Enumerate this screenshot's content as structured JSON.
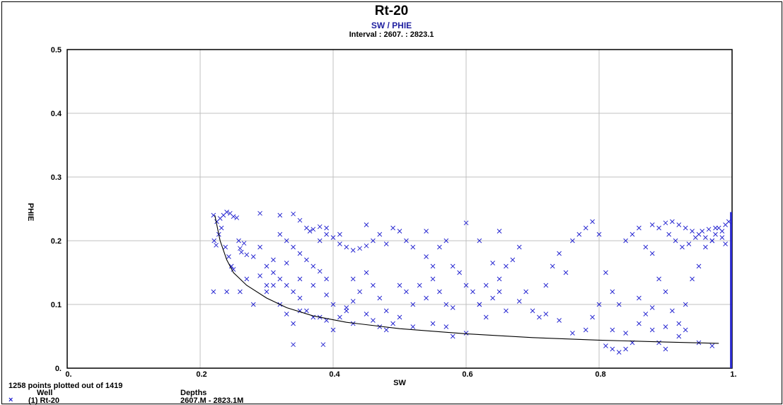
{
  "chart_data": {
    "type": "scatter",
    "title": "Rt-20",
    "subtitle": "SW / PHIE",
    "interval_label": "Interval : 2607. : 2823.1",
    "xlabel": "SW",
    "ylabel": "PHIE",
    "xlim": [
      0,
      1
    ],
    "ylim": [
      0,
      0.5
    ],
    "x_ticks": [
      "0.",
      "0.2",
      "0.4",
      "0.6",
      "0.8",
      "1."
    ],
    "y_ticks": [
      "0.",
      "0.1",
      "0.2",
      "0.3",
      "0.4",
      "0.5"
    ],
    "grid": true,
    "colors": {
      "points": "#2020d0",
      "curve": "#000000",
      "grid": "#c0c0c0",
      "subtitle": "#1f1fa0"
    },
    "series": [
      {
        "name": "(1) Rt-20",
        "marker": "x",
        "points": [
          [
            0.22,
            0.24
          ],
          [
            0.225,
            0.23
          ],
          [
            0.23,
            0.235
          ],
          [
            0.235,
            0.24
          ],
          [
            0.24,
            0.245
          ],
          [
            0.245,
            0.243
          ],
          [
            0.25,
            0.238
          ],
          [
            0.255,
            0.236
          ],
          [
            0.232,
            0.22
          ],
          [
            0.228,
            0.21
          ],
          [
            0.221,
            0.2
          ],
          [
            0.224,
            0.193
          ],
          [
            0.238,
            0.19
          ],
          [
            0.243,
            0.175
          ],
          [
            0.247,
            0.16
          ],
          [
            0.25,
            0.155
          ],
          [
            0.26,
            0.188
          ],
          [
            0.262,
            0.182
          ],
          [
            0.27,
            0.178
          ],
          [
            0.266,
            0.196
          ],
          [
            0.258,
            0.2
          ],
          [
            0.29,
            0.243
          ],
          [
            0.32,
            0.24
          ],
          [
            0.34,
            0.242
          ],
          [
            0.35,
            0.232
          ],
          [
            0.36,
            0.22
          ],
          [
            0.37,
            0.218
          ],
          [
            0.38,
            0.222
          ],
          [
            0.38,
            0.2
          ],
          [
            0.39,
            0.21
          ],
          [
            0.4,
            0.205
          ],
          [
            0.41,
            0.195
          ],
          [
            0.42,
            0.19
          ],
          [
            0.43,
            0.185
          ],
          [
            0.44,
            0.188
          ],
          [
            0.45,
            0.192
          ],
          [
            0.46,
            0.2
          ],
          [
            0.47,
            0.21
          ],
          [
            0.48,
            0.195
          ],
          [
            0.49,
            0.22
          ],
          [
            0.5,
            0.215
          ],
          [
            0.35,
            0.18
          ],
          [
            0.36,
            0.17
          ],
          [
            0.37,
            0.16
          ],
          [
            0.38,
            0.152
          ],
          [
            0.39,
            0.14
          ],
          [
            0.3,
            0.16
          ],
          [
            0.31,
            0.15
          ],
          [
            0.32,
            0.14
          ],
          [
            0.33,
            0.13
          ],
          [
            0.34,
            0.12
          ],
          [
            0.35,
            0.11
          ],
          [
            0.3,
            0.12
          ],
          [
            0.32,
            0.1
          ],
          [
            0.36,
            0.09
          ],
          [
            0.38,
            0.08
          ],
          [
            0.4,
            0.1
          ],
          [
            0.42,
            0.09
          ],
          [
            0.41,
            0.08
          ],
          [
            0.43,
            0.07
          ],
          [
            0.3,
            0.13
          ],
          [
            0.28,
            0.1
          ],
          [
            0.26,
            0.12
          ],
          [
            0.24,
            0.12
          ],
          [
            0.22,
            0.12
          ],
          [
            0.34,
            0.037
          ],
          [
            0.385,
            0.037
          ],
          [
            0.32,
            0.21
          ],
          [
            0.33,
            0.2
          ],
          [
            0.34,
            0.19
          ],
          [
            0.29,
            0.19
          ],
          [
            0.28,
            0.175
          ],
          [
            0.31,
            0.17
          ],
          [
            0.33,
            0.165
          ],
          [
            0.27,
            0.14
          ],
          [
            0.29,
            0.145
          ],
          [
            0.31,
            0.13
          ],
          [
            0.35,
            0.14
          ],
          [
            0.37,
            0.13
          ],
          [
            0.39,
            0.115
          ],
          [
            0.43,
            0.14
          ],
          [
            0.45,
            0.15
          ],
          [
            0.46,
            0.13
          ],
          [
            0.47,
            0.11
          ],
          [
            0.48,
            0.09
          ],
          [
            0.49,
            0.07
          ],
          [
            0.5,
            0.08
          ],
          [
            0.51,
            0.12
          ],
          [
            0.52,
            0.1
          ],
          [
            0.53,
            0.13
          ],
          [
            0.54,
            0.11
          ],
          [
            0.55,
            0.16
          ],
          [
            0.56,
            0.19
          ],
          [
            0.57,
            0.2
          ],
          [
            0.58,
            0.16
          ],
          [
            0.59,
            0.15
          ],
          [
            0.6,
            0.13
          ],
          [
            0.61,
            0.12
          ],
          [
            0.62,
            0.1
          ],
          [
            0.63,
            0.08
          ],
          [
            0.64,
            0.11
          ],
          [
            0.65,
            0.14
          ],
          [
            0.66,
            0.16
          ],
          [
            0.67,
            0.17
          ],
          [
            0.68,
            0.19
          ],
          [
            0.69,
            0.12
          ],
          [
            0.7,
            0.09
          ],
          [
            0.71,
            0.08
          ],
          [
            0.72,
            0.13
          ],
          [
            0.73,
            0.16
          ],
          [
            0.74,
            0.18
          ],
          [
            0.75,
            0.15
          ],
          [
            0.76,
            0.2
          ],
          [
            0.77,
            0.21
          ],
          [
            0.78,
            0.22
          ],
          [
            0.79,
            0.23
          ],
          [
            0.8,
            0.21
          ],
          [
            0.81,
            0.15
          ],
          [
            0.82,
            0.12
          ],
          [
            0.83,
            0.1
          ],
          [
            0.84,
            0.2
          ],
          [
            0.85,
            0.21
          ],
          [
            0.86,
            0.22
          ],
          [
            0.87,
            0.19
          ],
          [
            0.88,
            0.18
          ],
          [
            0.89,
            0.14
          ],
          [
            0.9,
            0.12
          ],
          [
            0.91,
            0.09
          ],
          [
            0.92,
            0.07
          ],
          [
            0.93,
            0.06
          ],
          [
            0.89,
            0.04
          ],
          [
            0.9,
            0.03
          ],
          [
            0.92,
            0.05
          ],
          [
            0.95,
            0.04
          ],
          [
            0.97,
            0.035
          ],
          [
            0.81,
            0.035
          ],
          [
            0.82,
            0.03
          ],
          [
            0.83,
            0.025
          ],
          [
            0.84,
            0.03
          ],
          [
            0.85,
            0.04
          ],
          [
            0.86,
            0.07
          ],
          [
            0.88,
            0.06
          ],
          [
            0.9,
            0.065
          ],
          [
            0.93,
            0.1
          ],
          [
            0.94,
            0.14
          ],
          [
            0.95,
            0.16
          ],
          [
            0.96,
            0.19
          ],
          [
            0.97,
            0.2
          ],
          [
            0.975,
            0.21
          ],
          [
            0.98,
            0.22
          ],
          [
            0.985,
            0.215
          ],
          [
            0.99,
            0.225
          ],
          [
            0.995,
            0.23
          ],
          [
            0.88,
            0.225
          ],
          [
            0.89,
            0.22
          ],
          [
            0.9,
            0.228
          ],
          [
            0.91,
            0.23
          ],
          [
            0.92,
            0.225
          ],
          [
            0.93,
            0.22
          ],
          [
            0.94,
            0.215
          ],
          [
            0.95,
            0.21
          ],
          [
            0.96,
            0.205
          ],
          [
            0.97,
            0.2
          ],
          [
            0.905,
            0.21
          ],
          [
            0.915,
            0.2
          ],
          [
            0.925,
            0.19
          ],
          [
            0.935,
            0.195
          ],
          [
            0.945,
            0.205
          ],
          [
            0.955,
            0.215
          ],
          [
            0.965,
            0.218
          ],
          [
            0.975,
            0.22
          ],
          [
            0.985,
            0.205
          ],
          [
            0.99,
            0.195
          ],
          [
            0.58,
            0.05
          ],
          [
            0.6,
            0.055
          ],
          [
            0.62,
            0.1
          ],
          [
            0.64,
            0.165
          ],
          [
            0.57,
            0.065
          ],
          [
            0.55,
            0.07
          ],
          [
            0.52,
            0.065
          ],
          [
            0.5,
            0.13
          ],
          [
            0.48,
            0.06
          ],
          [
            0.47,
            0.065
          ],
          [
            0.46,
            0.075
          ],
          [
            0.45,
            0.085
          ],
          [
            0.44,
            0.12
          ],
          [
            0.43,
            0.105
          ],
          [
            0.42,
            0.095
          ],
          [
            0.4,
            0.06
          ],
          [
            0.39,
            0.075
          ],
          [
            0.37,
            0.08
          ],
          [
            0.35,
            0.09
          ],
          [
            0.34,
            0.07
          ],
          [
            0.33,
            0.085
          ],
          [
            0.72,
            0.085
          ],
          [
            0.74,
            0.075
          ],
          [
            0.76,
            0.055
          ],
          [
            0.78,
            0.06
          ],
          [
            0.79,
            0.08
          ],
          [
            0.8,
            0.1
          ],
          [
            0.82,
            0.06
          ],
          [
            0.84,
            0.055
          ],
          [
            0.86,
            0.11
          ],
          [
            0.87,
            0.085
          ],
          [
            0.88,
            0.095
          ],
          [
            0.6,
            0.228
          ],
          [
            0.62,
            0.2
          ],
          [
            0.65,
            0.215
          ],
          [
            0.54,
            0.215
          ],
          [
            0.52,
            0.19
          ],
          [
            0.51,
            0.2
          ],
          [
            0.45,
            0.225
          ],
          [
            0.41,
            0.21
          ],
          [
            0.39,
            0.22
          ],
          [
            0.365,
            0.215
          ],
          [
            0.54,
            0.175
          ],
          [
            0.55,
            0.14
          ],
          [
            0.56,
            0.12
          ],
          [
            0.57,
            0.1
          ],
          [
            0.58,
            0.095
          ],
          [
            0.63,
            0.13
          ],
          [
            0.65,
            0.12
          ],
          [
            0.66,
            0.09
          ],
          [
            0.68,
            0.105
          ]
        ],
        "n_plotted": 1258,
        "n_total": 1419
      }
    ],
    "curve": [
      [
        0.222,
        0.24
      ],
      [
        0.23,
        0.2
      ],
      [
        0.24,
        0.17
      ],
      [
        0.25,
        0.15
      ],
      [
        0.27,
        0.13
      ],
      [
        0.3,
        0.11
      ],
      [
        0.33,
        0.095
      ],
      [
        0.37,
        0.082
      ],
      [
        0.42,
        0.072
      ],
      [
        0.5,
        0.062
      ],
      [
        0.6,
        0.054
      ],
      [
        0.7,
        0.048
      ],
      [
        0.8,
        0.044
      ],
      [
        0.9,
        0.041
      ],
      [
        0.98,
        0.039
      ]
    ]
  },
  "footer": {
    "points_text": "1258 points plotted out of 1419",
    "well_header": "Well",
    "depths_header": "Depths",
    "legend_entry": "(1) Rt-20",
    "depth_range": "2607.M - 2823.1M"
  }
}
